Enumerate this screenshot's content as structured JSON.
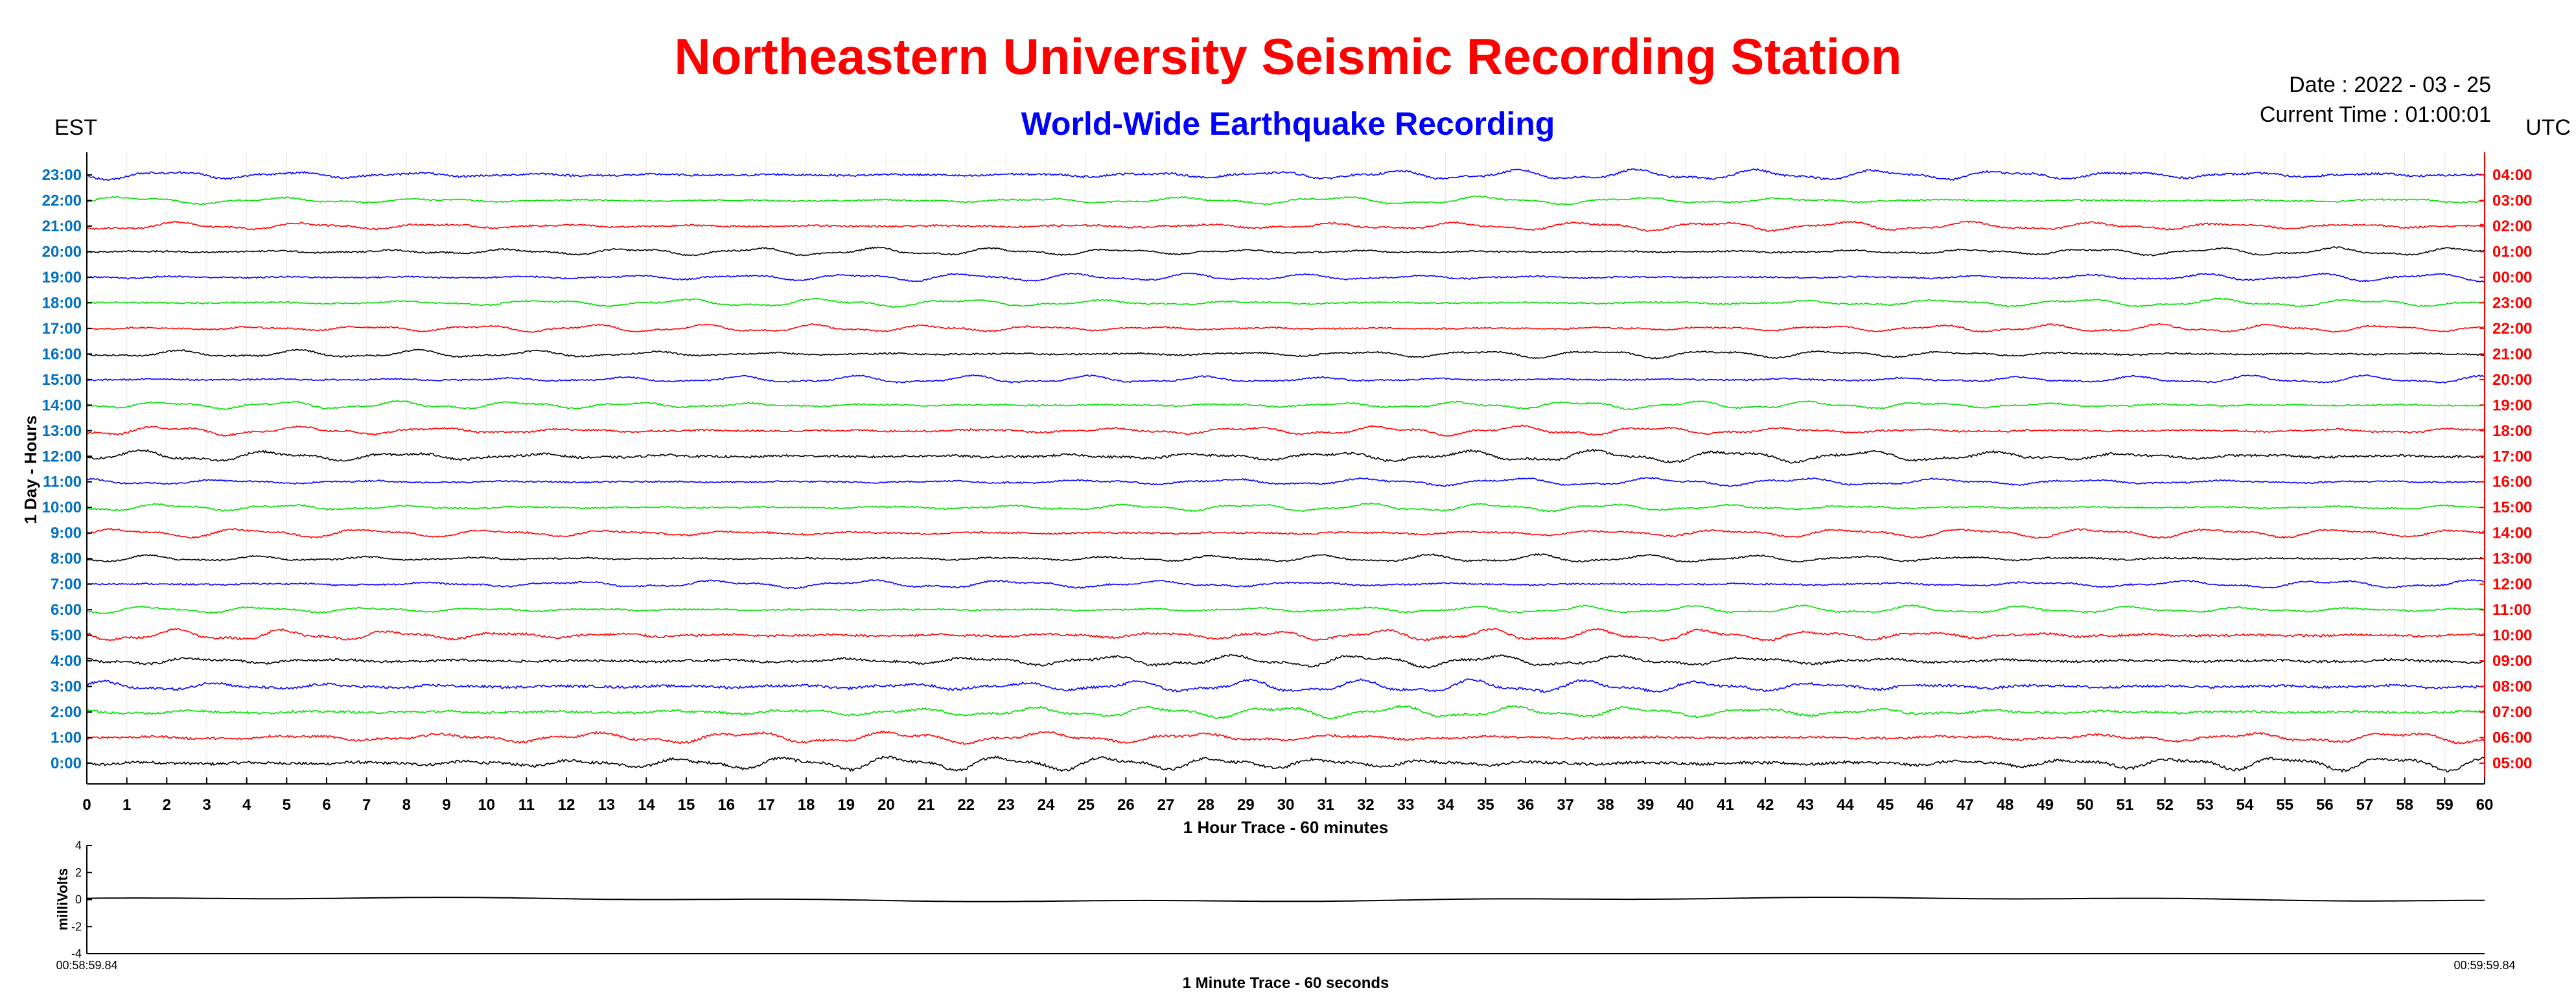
{
  "header": {
    "title": "Northeastern University Seismic Recording Station",
    "subtitle": "World-Wide Earthquake Recording",
    "date": "Date : 2022 - 03 - 25",
    "current_time": "Current Time : 01:00:01",
    "left_zone": "EST",
    "right_zone": "UTC"
  },
  "colors": {
    "title": "#ff0000",
    "subtitle": "#0000ff",
    "est_ticks": "#0070c0",
    "utc_ticks": "#ff0000",
    "trace_cycle": [
      "#000000",
      "#ff0000",
      "#00dd00",
      "#0000ff"
    ]
  },
  "chart_data": [
    {
      "type": "line",
      "name": "helicorder",
      "ylabel": "1 Day - Hours",
      "xlabel": "1 Hour Trace - 60 minutes",
      "xlim": [
        0,
        60
      ],
      "x_ticks": [
        "0",
        "1",
        "2",
        "3",
        "4",
        "5",
        "6",
        "7",
        "8",
        "9",
        "10",
        "11",
        "12",
        "13",
        "14",
        "15",
        "16",
        "17",
        "18",
        "19",
        "20",
        "21",
        "22",
        "23",
        "24",
        "25",
        "26",
        "27",
        "28",
        "29",
        "30",
        "31",
        "32",
        "33",
        "34",
        "35",
        "36",
        "37",
        "38",
        "39",
        "40",
        "41",
        "42",
        "43",
        "44",
        "45",
        "46",
        "47",
        "48",
        "49",
        "50",
        "51",
        "52",
        "53",
        "54",
        "55",
        "56",
        "57",
        "58",
        "59",
        "60"
      ],
      "est_hours": [
        "0:00",
        "1:00",
        "2:00",
        "3:00",
        "4:00",
        "5:00",
        "6:00",
        "7:00",
        "8:00",
        "9:00",
        "10:00",
        "11:00",
        "12:00",
        "13:00",
        "14:00",
        "15:00",
        "16:00",
        "17:00",
        "18:00",
        "19:00",
        "20:00",
        "21:00",
        "22:00",
        "23:00"
      ],
      "utc_hours": [
        "05:00",
        "06:00",
        "07:00",
        "08:00",
        "09:00",
        "10:00",
        "11:00",
        "12:00",
        "13:00",
        "14:00",
        "15:00",
        "16:00",
        "17:00",
        "18:00",
        "19:00",
        "20:00",
        "21:00",
        "22:00",
        "23:00",
        "00:00",
        "01:00",
        "02:00",
        "03:00",
        "04:00"
      ],
      "trace_amplitude": [
        0.55,
        0.45,
        0.45,
        0.5,
        0.45,
        0.45,
        0.3,
        0.3,
        0.3,
        0.35,
        0.3,
        0.3,
        0.45,
        0.35,
        0.3,
        0.3,
        0.3,
        0.3,
        0.3,
        0.3,
        0.3,
        0.35,
        0.3,
        0.4
      ],
      "grid": true
    },
    {
      "type": "line",
      "name": "minute-trace",
      "ylabel": "milliVolts",
      "xlabel": "1 Minute Trace  - 60 seconds",
      "ylim": [
        -4,
        4
      ],
      "y_ticks": [
        "4",
        "2",
        "0",
        "-2",
        "-4"
      ],
      "start_time": "00:58:59.84",
      "end_time": "00:59:59.84",
      "grid": false
    }
  ]
}
